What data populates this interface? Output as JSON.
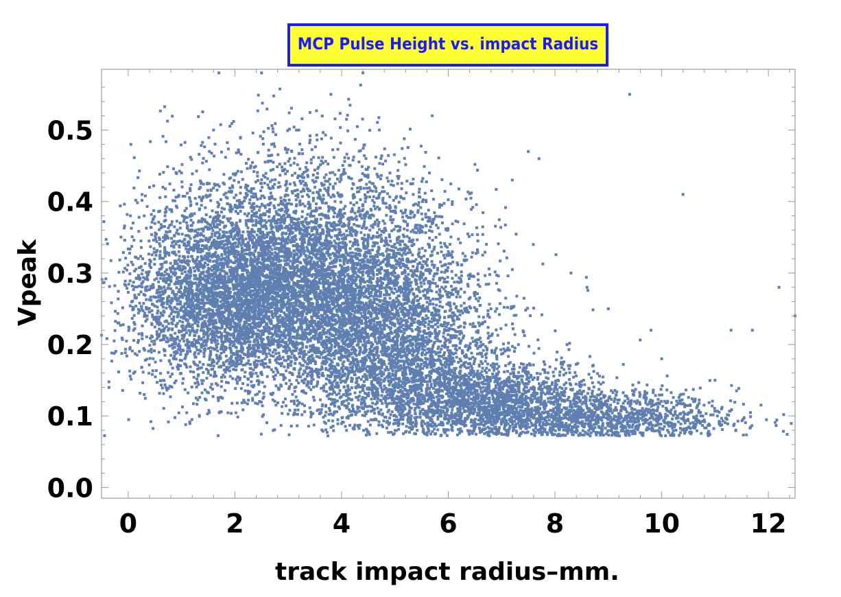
{
  "chart_data": {
    "type": "scatter",
    "title": "MCP Pulse Height vs. impact Radius",
    "xlabel": "track impact radius–mm.",
    "ylabel": "Vpeak",
    "xlim": [
      -0.5,
      12.5
    ],
    "ylim": [
      -0.015,
      0.585
    ],
    "x_ticks": [
      "0",
      "2",
      "4",
      "6",
      "8",
      "10",
      "12"
    ],
    "y_ticks": [
      "0.0",
      "0.1",
      "0.2",
      "0.3",
      "0.4",
      "0.5"
    ],
    "x_tick_values": [
      0,
      2,
      4,
      6,
      8,
      10,
      12
    ],
    "y_tick_values": [
      0.0,
      0.1,
      0.2,
      0.3,
      0.4,
      0.5
    ],
    "threshold_vpeak": 0.072,
    "grid": false,
    "frame": true,
    "colors": {
      "points": "#5f7fb0",
      "title_text": "#1a1aff",
      "title_bg": "#ffff33",
      "title_border": "#1a1aff",
      "frame": "#999999"
    },
    "series": [
      {
        "values_note_points": [
          [
            0.05,
            0.48
          ],
          [
            0.1,
            0.22
          ],
          [
            0.2,
            0.27
          ],
          [
            0.3,
            0.38
          ],
          [
            0.4,
            0.42
          ],
          [
            0.3,
            0.13
          ],
          [
            0.6,
            0.33
          ],
          [
            0.8,
            0.25
          ],
          [
            1.0,
            0.44
          ],
          [
            1.2,
            0.36
          ],
          [
            1.4,
            0.3
          ],
          [
            1.6,
            0.5
          ],
          [
            1.7,
            0.58
          ],
          [
            2.0,
            0.33
          ],
          [
            2.3,
            0.45
          ],
          [
            2.5,
            0.58
          ],
          [
            2.8,
            0.28
          ],
          [
            3.0,
            0.35
          ],
          [
            3.2,
            0.5
          ],
          [
            3.5,
            0.42
          ],
          [
            3.8,
            0.55
          ],
          [
            4.0,
            0.3
          ],
          [
            4.2,
            0.25
          ],
          [
            4.4,
            0.58
          ],
          [
            4.6,
            0.38
          ],
          [
            4.8,
            0.2
          ],
          [
            5.0,
            0.3
          ],
          [
            5.2,
            0.15
          ],
          [
            5.5,
            0.12
          ],
          [
            5.7,
            0.52
          ],
          [
            6.0,
            0.33
          ],
          [
            6.4,
            0.18
          ],
          [
            6.8,
            0.25
          ],
          [
            7.0,
            0.14
          ],
          [
            7.2,
            0.43
          ],
          [
            7.5,
            0.47
          ],
          [
            7.7,
            0.46
          ],
          [
            8.0,
            0.12
          ],
          [
            8.3,
            0.3
          ],
          [
            8.6,
            0.28
          ],
          [
            9.0,
            0.25
          ],
          [
            9.4,
            0.55
          ],
          [
            9.8,
            0.22
          ],
          [
            10.0,
            0.18
          ],
          [
            10.4,
            0.41
          ],
          [
            10.6,
            0.12
          ],
          [
            11.0,
            0.15
          ],
          [
            11.3,
            0.22
          ],
          [
            11.7,
            0.22
          ],
          [
            12.2,
            0.28
          ],
          [
            12.5,
            0.24
          ]
        ],
        "density_regions": [
          {
            "cx": 3.6,
            "cy": 0.27,
            "sx": 1.4,
            "sy": 0.07,
            "n": 5200
          },
          {
            "cx": 2.0,
            "cy": 0.27,
            "sx": 0.8,
            "sy": 0.06,
            "n": 2200
          },
          {
            "cx": 5.0,
            "cy": 0.17,
            "sx": 0.9,
            "sy": 0.06,
            "n": 2000
          },
          {
            "cx": 6.8,
            "cy": 0.12,
            "sx": 1.0,
            "sy": 0.03,
            "n": 1800
          },
          {
            "cx": 9.0,
            "cy": 0.095,
            "sx": 1.2,
            "sy": 0.02,
            "n": 1300
          },
          {
            "cx": 3.3,
            "cy": 0.4,
            "sx": 1.3,
            "sy": 0.06,
            "n": 800
          },
          {
            "cx": 0.9,
            "cy": 0.26,
            "sx": 0.6,
            "sy": 0.07,
            "n": 600
          }
        ]
      }
    ]
  }
}
